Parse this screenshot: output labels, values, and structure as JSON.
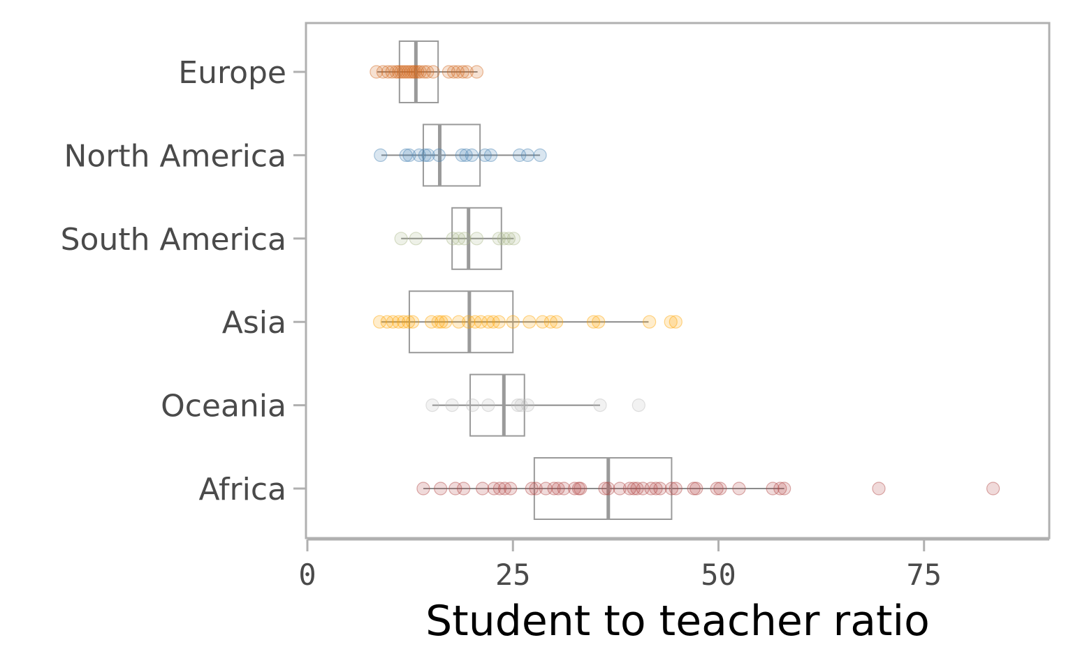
{
  "chart_data": {
    "type": "boxplot-with-points",
    "xlabel": "Student to teacher ratio",
    "ylabel": "",
    "xlim": [
      0,
      90
    ],
    "xticks": [
      0,
      25,
      50,
      75
    ],
    "grid": false,
    "legend": "none",
    "categories": [
      "Europe",
      "North America",
      "South America",
      "Asia",
      "Oceania",
      "Africa"
    ],
    "series": [
      {
        "category": "Europe",
        "color": "#d2691e",
        "box": {
          "q1": 11.2,
          "median": 13.2,
          "q3": 15.9,
          "whisker_low": 8.5,
          "whisker_high": 20.7
        },
        "points": [
          8.4,
          9.2,
          9.8,
          10.3,
          10.8,
          11.1,
          11.4,
          11.7,
          12.0,
          12.3,
          12.6,
          12.9,
          13.1,
          13.4,
          13.7,
          14.2,
          14.6,
          15.3,
          17.2,
          17.8,
          18.3,
          18.9,
          19.4,
          20.6
        ]
      },
      {
        "category": "North America",
        "color": "#4682b4",
        "box": {
          "q1": 14.1,
          "median": 16.1,
          "q3": 21.0,
          "whisker_low": 9.0,
          "whisker_high": 28.3
        },
        "points": [
          8.9,
          12.0,
          12.4,
          13.6,
          14.3,
          14.7,
          16.0,
          18.8,
          19.3,
          20.0,
          21.6,
          22.3,
          25.8,
          26.8,
          28.3
        ]
      },
      {
        "category": "South America",
        "color": "#aab88a",
        "box": {
          "q1": 17.6,
          "median": 19.6,
          "q3": 23.6,
          "whisker_low": 11.4,
          "whisker_high": 25.1
        },
        "points": [
          11.4,
          13.2,
          17.7,
          18.4,
          19.1,
          20.6,
          23.3,
          23.9,
          24.5,
          25.1
        ]
      },
      {
        "category": "Asia",
        "color": "#ffa500",
        "box": {
          "q1": 12.4,
          "median": 19.7,
          "q3": 25.0,
          "whisker_low": 9.0,
          "whisker_high": 41.5
        },
        "points": [
          8.8,
          9.7,
          10.4,
          11.1,
          11.7,
          12.3,
          12.8,
          15.1,
          15.9,
          16.3,
          16.8,
          18.4,
          19.6,
          20.4,
          21.1,
          22.0,
          22.6,
          23.3,
          25.0,
          27.0,
          28.6,
          29.6,
          30.3,
          34.8,
          35.4,
          41.6,
          44.2,
          44.8
        ]
      },
      {
        "category": "Oceania",
        "color": "#bdbdbd",
        "box": {
          "q1": 19.8,
          "median": 23.9,
          "q3": 26.4,
          "whisker_low": 15.2,
          "whisker_high": 35.6
        },
        "points": [
          15.2,
          17.6,
          20.1,
          22.0,
          25.6,
          26.0,
          26.8,
          35.6,
          40.3
        ]
      },
      {
        "category": "Africa",
        "color": "#b24745",
        "box": {
          "q1": 27.6,
          "median": 36.6,
          "q3": 44.3,
          "whisker_low": 14.1,
          "whisker_high": 58.0
        },
        "points": [
          14.1,
          16.2,
          18.0,
          19.0,
          21.3,
          22.7,
          23.4,
          24.0,
          24.7,
          27.3,
          27.8,
          29.0,
          30.0,
          30.5,
          31.2,
          32.5,
          33.0,
          33.2,
          36.2,
          36.6,
          38.0,
          39.2,
          39.7,
          40.1,
          40.8,
          41.8,
          42.4,
          42.9,
          44.3,
          44.8,
          47.0,
          47.3,
          49.8,
          50.2,
          52.5,
          56.6,
          57.5,
          58.0,
          69.5,
          83.4
        ]
      }
    ]
  }
}
